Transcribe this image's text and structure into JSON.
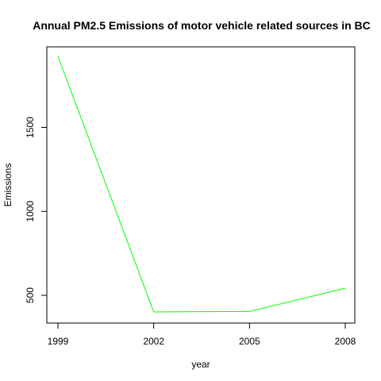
{
  "chart_data": {
    "type": "line",
    "title": "Annual PM2.5 Emissions of motor vehicle related sources in BC",
    "xlabel": "year",
    "ylabel": "Emissions",
    "x": [
      1999,
      2002,
      2005,
      2008
    ],
    "x_ticks": [
      "1999",
      "2002",
      "2005",
      "2008"
    ],
    "y_ticks": [
      "500",
      "1000",
      "1500"
    ],
    "y_tick_values": [
      500,
      1000,
      1500
    ],
    "series": [
      {
        "values": [
          1923,
          401,
          404,
          542
        ],
        "color": "#00ff00"
      }
    ],
    "xlim": [
      1999,
      2008
    ],
    "ylim": [
      401,
      1923
    ],
    "grid": false,
    "legend": "none"
  }
}
